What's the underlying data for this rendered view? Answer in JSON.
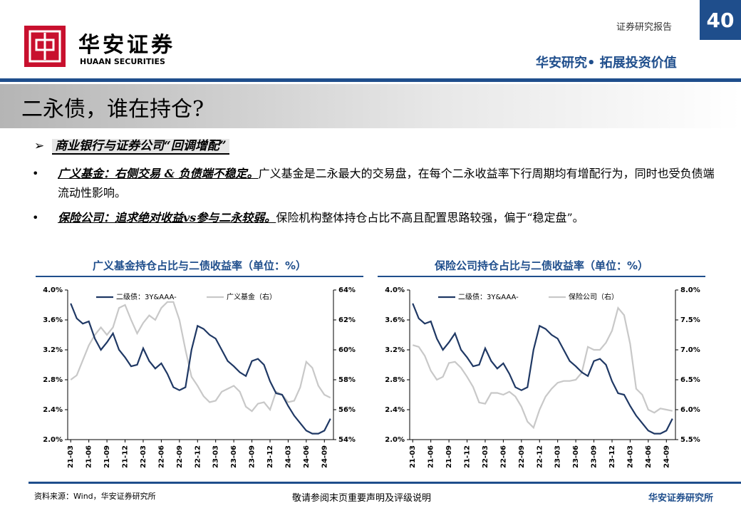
{
  "header": {
    "brand": "华安证券",
    "brand_en": "HUAAN SECURITIES",
    "report_type": "证券研究报告",
    "page_number": "40",
    "slogan": "华安研究• 拓展投资价值"
  },
  "title": "二永债，谁在持仓?",
  "section": "商业银行与证券公司“回调增配”",
  "bullets": [
    {
      "lead": "广义基金：右侧交易 & 负债端不稳定。",
      "text": "广义基金是二永最大的交易盘，在每个二永收益率下行周期均有增配行为，同时也受负债端流动性影响。"
    },
    {
      "lead": "保险公司：追求绝对收益vs参与二永较弱。",
      "text": "保险机构整体持仓占比不高且配置思路较强，偏于“稳定盘”。"
    }
  ],
  "chart_data": [
    {
      "type": "line",
      "title": "广义基金持仓占比与二债收益率（单位：%）",
      "categories": [
        "21-03",
        null,
        null,
        "21-06",
        null,
        null,
        "21-09",
        null,
        null,
        "21-12",
        null,
        null,
        "22-03",
        null,
        null,
        "22-06",
        null,
        null,
        "22-09",
        null,
        null,
        "22-12",
        null,
        null,
        "23-03",
        null,
        null,
        "23-06",
        null,
        null,
        "23-09",
        null,
        null,
        "23-12",
        null,
        null,
        "24-03",
        null,
        null,
        "24-06",
        null,
        null,
        "24-09",
        null
      ],
      "series": [
        {
          "name": "二级债：3Y&AAA-",
          "color": "#1f3864",
          "values": [
            3.82,
            3.62,
            3.55,
            3.58,
            3.35,
            3.2,
            3.3,
            3.42,
            3.2,
            3.1,
            2.98,
            3.0,
            3.22,
            3.05,
            2.95,
            3.02,
            2.88,
            2.7,
            2.66,
            2.7,
            3.2,
            3.52,
            3.48,
            3.4,
            3.35,
            3.2,
            3.05,
            2.98,
            2.9,
            2.85,
            3.05,
            3.08,
            3.0,
            2.78,
            2.62,
            2.6,
            2.45,
            2.32,
            2.22,
            2.12,
            2.08,
            2.08,
            2.12,
            2.28
          ]
        },
        {
          "name": "广义基金（右）",
          "color": "#c8c8c8",
          "axis": "y2",
          "values": [
            58.0,
            58.3,
            59.3,
            60.3,
            61.0,
            61.5,
            61.0,
            61.5,
            62.8,
            63.0,
            62.0,
            61.1,
            61.8,
            62.3,
            62.0,
            62.8,
            63.2,
            63.2,
            62.0,
            60.0,
            58.2,
            57.6,
            56.9,
            56.5,
            56.6,
            57.2,
            57.4,
            57.6,
            57.2,
            56.2,
            55.9,
            56.4,
            56.5,
            56.0,
            57.2,
            57.0,
            56.5,
            56.6,
            57.5,
            59.2,
            58.8,
            57.6,
            57.0,
            56.8
          ]
        }
      ],
      "ylim": [
        2.0,
        4.0
      ],
      "yticks": [
        {
          "value": 2.0,
          "label": "2.0%"
        },
        {
          "value": 2.4,
          "label": "2.4%"
        },
        {
          "value": 2.8,
          "label": "2.8%"
        },
        {
          "value": 3.2,
          "label": "3.2%"
        },
        {
          "value": 3.6,
          "label": "3.6%"
        },
        {
          "value": 4.0,
          "label": "4.0%"
        }
      ],
      "y2lim": [
        54,
        64
      ],
      "y2ticks": [
        {
          "value": 54,
          "label": "54%"
        },
        {
          "value": 56,
          "label": "56%"
        },
        {
          "value": 58,
          "label": "58%"
        },
        {
          "value": 60,
          "label": "60%"
        },
        {
          "value": 62,
          "label": "62%"
        },
        {
          "value": 64,
          "label": "64%"
        }
      ],
      "grid": false,
      "legend": "top"
    },
    {
      "type": "line",
      "title": "保险公司持仓占比与二债收益率（单位：%）",
      "categories": [
        "21-03",
        null,
        null,
        "21-06",
        null,
        null,
        "21-09",
        null,
        null,
        "21-12",
        null,
        null,
        "22-03",
        null,
        null,
        "22-06",
        null,
        null,
        "22-09",
        null,
        null,
        "22-12",
        null,
        null,
        "23-03",
        null,
        null,
        "23-06",
        null,
        null,
        "23-09",
        null,
        null,
        "23-12",
        null,
        null,
        "24-03",
        null,
        null,
        "24-06",
        null,
        null,
        "24-09",
        null
      ],
      "series": [
        {
          "name": "二级债：3Y&AAA-",
          "color": "#1f3864",
          "values": [
            3.82,
            3.62,
            3.55,
            3.58,
            3.35,
            3.2,
            3.3,
            3.42,
            3.2,
            3.1,
            2.98,
            3.0,
            3.22,
            3.05,
            2.95,
            3.02,
            2.88,
            2.7,
            2.66,
            2.7,
            3.2,
            3.52,
            3.48,
            3.4,
            3.35,
            3.2,
            3.05,
            2.98,
            2.9,
            2.85,
            3.05,
            3.08,
            3.0,
            2.78,
            2.62,
            2.6,
            2.45,
            2.32,
            2.22,
            2.12,
            2.08,
            2.08,
            2.12,
            2.28
          ]
        },
        {
          "name": "保险公司（右）",
          "color": "#c8c8c8",
          "axis": "y2",
          "values": [
            7.08,
            7.05,
            6.9,
            6.65,
            6.5,
            6.55,
            6.78,
            6.8,
            6.7,
            6.55,
            6.38,
            6.12,
            6.1,
            6.28,
            6.28,
            6.25,
            6.3,
            6.22,
            6.05,
            5.8,
            5.7,
            6.0,
            6.22,
            6.35,
            6.45,
            6.48,
            6.48,
            6.5,
            6.62,
            7.05,
            7.0,
            7.0,
            7.12,
            7.32,
            7.7,
            7.58,
            7.1,
            6.35,
            6.25,
            6.0,
            5.95,
            6.02,
            6.0,
            5.98
          ]
        }
      ],
      "ylim": [
        2.0,
        4.0
      ],
      "yticks": [
        {
          "value": 2.0,
          "label": "2.0%"
        },
        {
          "value": 2.4,
          "label": "2.4%"
        },
        {
          "value": 2.8,
          "label": "2.8%"
        },
        {
          "value": 3.2,
          "label": "3.2%"
        },
        {
          "value": 3.6,
          "label": "3.6%"
        },
        {
          "value": 4.0,
          "label": "4.0%"
        }
      ],
      "y2lim": [
        5.5,
        8.0
      ],
      "y2ticks": [
        {
          "value": 5.5,
          "label": "5.5%"
        },
        {
          "value": 6.0,
          "label": "6.0%"
        },
        {
          "value": 6.5,
          "label": "6.5%"
        },
        {
          "value": 7.0,
          "label": "7.0%"
        },
        {
          "value": 7.5,
          "label": "7.5%"
        },
        {
          "value": 8.0,
          "label": "8.0%"
        }
      ],
      "grid": false,
      "legend": "top"
    }
  ],
  "footer": {
    "source": "资料来源：Wind，华安证券研究所",
    "notice": "敬请参阅末页重要声明及评级说明",
    "org": "华安证券研究所"
  }
}
